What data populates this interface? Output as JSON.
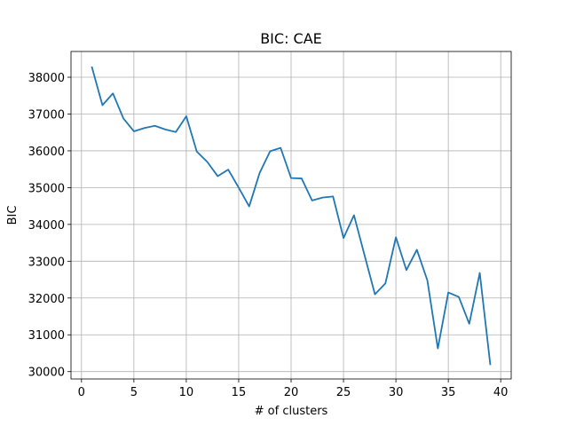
{
  "chart_data": {
    "type": "line",
    "title": "BIC: CAE",
    "xlabel": "# of clusters",
    "ylabel": "BIC",
    "xlim": [
      -1,
      41
    ],
    "ylim": [
      29800,
      38700
    ],
    "xticks": [
      0,
      5,
      10,
      15,
      20,
      25,
      30,
      35,
      40
    ],
    "yticks": [
      30000,
      31000,
      32000,
      33000,
      34000,
      35000,
      36000,
      37000,
      38000
    ],
    "grid": true,
    "colors": {
      "line": "#1f77b4"
    },
    "series": [
      {
        "x": [
          1,
          2,
          3,
          4,
          5,
          6,
          7,
          8,
          9,
          10,
          11,
          12,
          13,
          14,
          15,
          16,
          17,
          18,
          19,
          20,
          21,
          22,
          23,
          24,
          25,
          26,
          27,
          28,
          29,
          30,
          31,
          32,
          33,
          34,
          35,
          36,
          37,
          38,
          39
        ],
        "y": [
          38270,
          37240,
          37560,
          36880,
          36530,
          36620,
          36680,
          36580,
          36510,
          36940,
          35980,
          35700,
          35310,
          35490,
          35000,
          34490,
          35400,
          35990,
          36080,
          35260,
          35250,
          34650,
          34730,
          34760,
          33630,
          34250,
          33170,
          32100,
          32400,
          33650,
          32760,
          33310,
          32480,
          30630,
          32150,
          32030,
          31300,
          32680,
          30200
        ]
      }
    ]
  }
}
